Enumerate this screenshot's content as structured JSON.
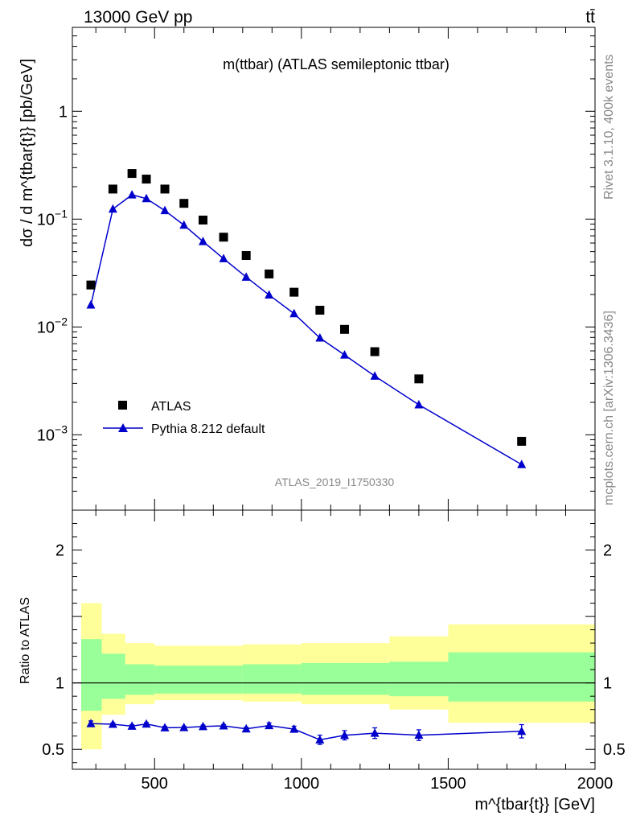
{
  "header": {
    "left": "13000 GeV pp",
    "right": "tt̄"
  },
  "side_text": {
    "rivet": "Rivet 3.1.10,  400k events",
    "mcplots": "mcplots.cern.ch [arXiv:1306.3436]"
  },
  "colors": {
    "data": "#000000",
    "mc": "#0000cc",
    "band_inner": "#99ff99",
    "band_outer": "#ffff99"
  },
  "chart_data": [
    {
      "type": "scatter",
      "title": "m(ttbar) (ATLAS semileptonic ttbar)",
      "ylabel": "dσ / d m^{tbar{t}} [pb/GeV]",
      "yscale": "log",
      "ylim": [
        0.0002,
        6
      ],
      "xlim": [
        220,
        2000
      ],
      "ytick_labels": [
        "1",
        "10^-1",
        "10^-2",
        "10^-3"
      ],
      "watermark": "ATLAS_2019_I1750330",
      "legend": {
        "position": "bottom-left",
        "entries": [
          "ATLAS",
          "Pythia 8.212 default"
        ]
      },
      "series": [
        {
          "name": "ATLAS",
          "style": "square-markers",
          "x": [
            283,
            358,
            423,
            472,
            535,
            600,
            665,
            735,
            812,
            890,
            975,
            1063,
            1147,
            1250,
            1400,
            1750
          ],
          "values": [
            0.0245,
            0.19,
            0.265,
            0.235,
            0.19,
            0.14,
            0.098,
            0.068,
            0.046,
            0.031,
            0.021,
            0.0143,
            0.0095,
            0.0059,
            0.0033,
            0.00087
          ]
        },
        {
          "name": "Pythia 8.212 default",
          "style": "line-triangles",
          "x": [
            283,
            358,
            423,
            472,
            535,
            600,
            665,
            735,
            812,
            890,
            975,
            1063,
            1147,
            1250,
            1400,
            1750
          ],
          "values": [
            0.016,
            0.124,
            0.168,
            0.155,
            0.12,
            0.088,
            0.062,
            0.043,
            0.029,
            0.0198,
            0.0133,
            0.0079,
            0.0055,
            0.0035,
            0.0019,
            0.00053
          ]
        }
      ]
    },
    {
      "type": "line",
      "ylabel": "Ratio to ATLAS",
      "xlabel": "m^{tbar{t}} [GeV]",
      "xlim": [
        220,
        2000
      ],
      "ylim": [
        0.35,
        2.3
      ],
      "ytick_labels": [
        "0.5",
        "1",
        "2"
      ],
      "xtick_labels": [
        "500",
        "1000",
        "1500",
        "2000"
      ],
      "bands": [
        {
          "x0": 250,
          "x1": 320,
          "inner": [
            0.79,
            1.33
          ],
          "outer": [
            0.5,
            1.6
          ]
        },
        {
          "x0": 320,
          "x1": 400,
          "inner": [
            0.88,
            1.22
          ],
          "outer": [
            0.76,
            1.37
          ]
        },
        {
          "x0": 400,
          "x1": 500,
          "inner": [
            0.91,
            1.14
          ],
          "outer": [
            0.84,
            1.3
          ]
        },
        {
          "x0": 500,
          "x1": 800,
          "inner": [
            0.92,
            1.13
          ],
          "outer": [
            0.87,
            1.28
          ]
        },
        {
          "x0": 800,
          "x1": 1000,
          "inner": [
            0.92,
            1.14
          ],
          "outer": [
            0.86,
            1.29
          ]
        },
        {
          "x0": 1000,
          "x1": 1300,
          "inner": [
            0.91,
            1.15
          ],
          "outer": [
            0.84,
            1.3
          ]
        },
        {
          "x0": 1300,
          "x1": 1500,
          "inner": [
            0.9,
            1.16
          ],
          "outer": [
            0.8,
            1.35
          ]
        },
        {
          "x0": 1500,
          "x1": 2000,
          "inner": [
            0.86,
            1.23
          ],
          "outer": [
            0.7,
            1.44
          ]
        }
      ],
      "series": [
        {
          "name": "Pythia 8.212 default / ATLAS",
          "x": [
            283,
            358,
            423,
            472,
            535,
            600,
            665,
            735,
            812,
            890,
            975,
            1063,
            1147,
            1250,
            1400,
            1750
          ],
          "values": [
            0.694,
            0.689,
            0.675,
            0.691,
            0.663,
            0.664,
            0.672,
            0.677,
            0.654,
            0.679,
            0.652,
            0.572,
            0.606,
            0.622,
            0.607,
            0.636
          ],
          "errors": [
            0.02,
            0.01,
            0.01,
            0.01,
            0.01,
            0.01,
            0.01,
            0.01,
            0.012,
            0.02,
            0.022,
            0.035,
            0.035,
            0.04,
            0.04,
            0.05
          ]
        }
      ]
    }
  ]
}
